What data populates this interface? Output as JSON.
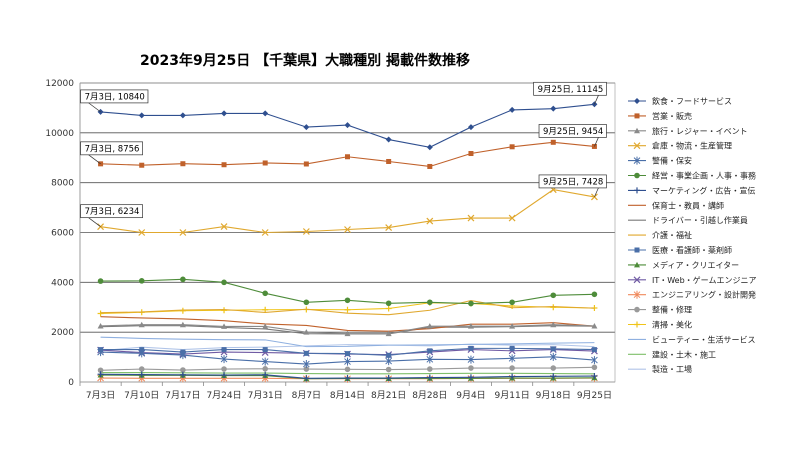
{
  "chart_data": {
    "type": "line",
    "title": "2023年9月25日 【千葉県】大職種別 掲載件数推移",
    "categories": [
      "7月3日",
      "7月10日",
      "7月17日",
      "7月24日",
      "7月31日",
      "8月7日",
      "8月14日",
      "8月21日",
      "8月28日",
      "9月4日",
      "9月11日",
      "9月18日",
      "9月25日"
    ],
    "ylim": [
      0,
      12000
    ],
    "yticks": [
      "0",
      "2000",
      "4000",
      "6000",
      "8000",
      "10000",
      "12000"
    ],
    "grid": true,
    "legend_position": "right",
    "series": [
      {
        "name": "飲食・フードサービス",
        "color": "#2f4f8f",
        "marker": "diamond",
        "values": [
          10840,
          10700,
          10700,
          10780,
          10780,
          10230,
          10310,
          9730,
          9420,
          10230,
          10920,
          10970,
          11145
        ]
      },
      {
        "name": "営業・販売",
        "color": "#c0612b",
        "marker": "square",
        "values": [
          8756,
          8700,
          8760,
          8720,
          8790,
          8750,
          9040,
          8850,
          8650,
          9170,
          9440,
          9620,
          9454
        ]
      },
      {
        "name": "旅行・レジャー・イベント",
        "color": "#8a8a8a",
        "marker": "triangle",
        "values": [
          2250,
          2300,
          2300,
          2230,
          2230,
          2000,
          1940,
          1940,
          2240,
          2240,
          2240,
          2300,
          2250
        ]
      },
      {
        "name": "倉庫・物流・生産管理",
        "color": "#e0a82e",
        "marker": "x",
        "values": [
          6234,
          6000,
          6000,
          6240,
          6000,
          6040,
          6120,
          6200,
          6460,
          6580,
          6580,
          7720,
          7428
        ]
      },
      {
        "name": "警備・保安",
        "color": "#4a6fa8",
        "marker": "star",
        "values": [
          1200,
          1150,
          1080,
          920,
          820,
          720,
          820,
          840,
          910,
          900,
          950,
          1010,
          880
        ]
      },
      {
        "name": "経営・事業企画・人事・事務",
        "color": "#4e8c3a",
        "marker": "circle",
        "values": [
          4050,
          4060,
          4120,
          4000,
          3560,
          3200,
          3280,
          3160,
          3200,
          3150,
          3200,
          3480,
          3520
        ]
      },
      {
        "name": "マーケティング・広告・宣伝",
        "color": "#2f4f8f",
        "marker": "plus",
        "values": [
          310,
          300,
          290,
          280,
          290,
          150,
          160,
          160,
          180,
          190,
          220,
          230,
          240
        ]
      },
      {
        "name": "保育士・教員・講師",
        "color": "#c0612b",
        "marker": "none",
        "values": [
          2620,
          2570,
          2530,
          2460,
          2330,
          2270,
          2070,
          2040,
          2140,
          2320,
          2320,
          2380,
          2240
        ]
      },
      {
        "name": "ドライバー・引越し作業員",
        "color": "#7a7a7a",
        "marker": "none",
        "values": [
          2220,
          2260,
          2260,
          2190,
          2130,
          1940,
          1930,
          1930,
          2200,
          2200,
          2220,
          2260,
          2240
        ]
      },
      {
        "name": "介護・福祉",
        "color": "#e0a82e",
        "marker": "none",
        "values": [
          2780,
          2810,
          2890,
          2910,
          2790,
          2920,
          2760,
          2700,
          2880,
          3270,
          2980,
          3030,
          2960
        ]
      },
      {
        "name": "医療・看護師・薬剤師",
        "color": "#4a6fa8",
        "marker": "square",
        "values": [
          1300,
          1300,
          1200,
          1300,
          1300,
          1150,
          1140,
          1070,
          1250,
          1350,
          1350,
          1330,
          1300
        ]
      },
      {
        "name": "メディア・クリエイター",
        "color": "#4e8c3a",
        "marker": "triangle",
        "values": [
          280,
          270,
          270,
          260,
          260,
          130,
          140,
          140,
          150,
          150,
          160,
          160,
          170
        ]
      },
      {
        "name": "IT・Web・ゲームエンジニア",
        "color": "#6f5aa3",
        "marker": "x",
        "values": [
          1280,
          1180,
          1120,
          1200,
          1180,
          1150,
          1120,
          1100,
          1200,
          1300,
          1250,
          1300,
          1240
        ]
      },
      {
        "name": "エンジニアリング・設計開発",
        "color": "#f08a5d",
        "marker": "star",
        "values": [
          160,
          150,
          150,
          150,
          150,
          130,
          130,
          130,
          130,
          140,
          150,
          150,
          160
        ]
      },
      {
        "name": "整備・修理",
        "color": "#9a9a9a",
        "marker": "circle",
        "values": [
          470,
          520,
          480,
          520,
          530,
          520,
          510,
          500,
          520,
          560,
          560,
          560,
          590
        ]
      },
      {
        "name": "清掃・美化",
        "color": "#f0c419",
        "marker": "plus",
        "values": [
          2750,
          2800,
          2860,
          2880,
          2900,
          2910,
          2900,
          2950,
          3180,
          3150,
          3050,
          3000,
          2970
        ]
      },
      {
        "name": "ビューティー・生活サービス",
        "color": "#8fb0e0",
        "marker": "none",
        "values": [
          1800,
          1750,
          1720,
          1700,
          1690,
          1420,
          1430,
          1480,
          1490,
          1510,
          1530,
          1560,
          1580
        ]
      },
      {
        "name": "建設・土木・施工",
        "color": "#7fbf6a",
        "marker": "none",
        "values": [
          380,
          380,
          370,
          360,
          360,
          340,
          330,
          330,
          340,
          350,
          350,
          340,
          330
        ]
      },
      {
        "name": "製造・工場",
        "color": "#b0c4e8",
        "marker": "none",
        "values": [
          1250,
          1400,
          1300,
          1380,
          1400,
          1450,
          1500,
          1480,
          1450,
          1520,
          1480,
          1500,
          1420
        ]
      }
    ],
    "annotations": [
      {
        "text": "7月3日, 10840",
        "series": 0,
        "point": 0
      },
      {
        "text": "9月25日, 11145",
        "series": 0,
        "point": 12
      },
      {
        "text": "7月3日, 8756",
        "series": 1,
        "point": 0
      },
      {
        "text": "9月25日, 9454",
        "series": 1,
        "point": 12
      },
      {
        "text": "7月3日, 6234",
        "series": 3,
        "point": 0
      },
      {
        "text": "9月25日, 7428",
        "series": 3,
        "point": 12
      }
    ]
  }
}
